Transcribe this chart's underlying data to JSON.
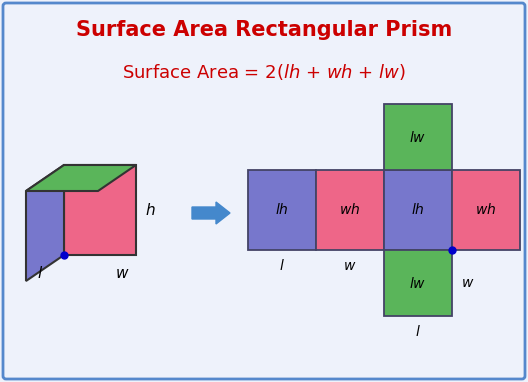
{
  "title": "Surface Area Rectangular Prism",
  "bg_color": "#eef2fb",
  "border_color": "#5588cc",
  "title_color": "#cc0000",
  "formula_color": "#cc0000",
  "green_color": "#5ab55a",
  "blue_color": "#7777cc",
  "pink_color": "#ee6688",
  "cube_front_color": "#ee6688",
  "cube_left_color": "#7777cc",
  "cube_top_color": "#5ab55a",
  "arrow_color": "#4488cc",
  "dot_color": "#0000cc",
  "edge_color": "#444466",
  "label_color": "#111111"
}
